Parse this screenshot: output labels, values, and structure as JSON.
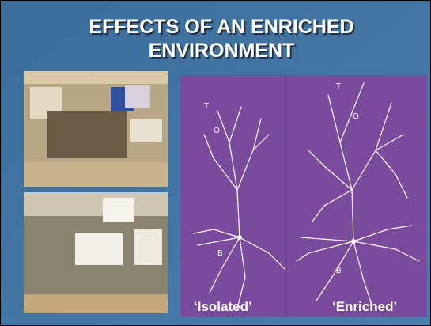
{
  "slide": {
    "title": [
      "EFFECTS OF AN ENRICHED",
      "ENVIRONMENT"
    ],
    "panels": [
      {
        "caption": "‘Isolated’",
        "labels": [
          "T",
          "O",
          "B"
        ]
      },
      {
        "caption": "‘Enriched’",
        "labels": [
          "T",
          "O",
          "B"
        ]
      }
    ]
  }
}
